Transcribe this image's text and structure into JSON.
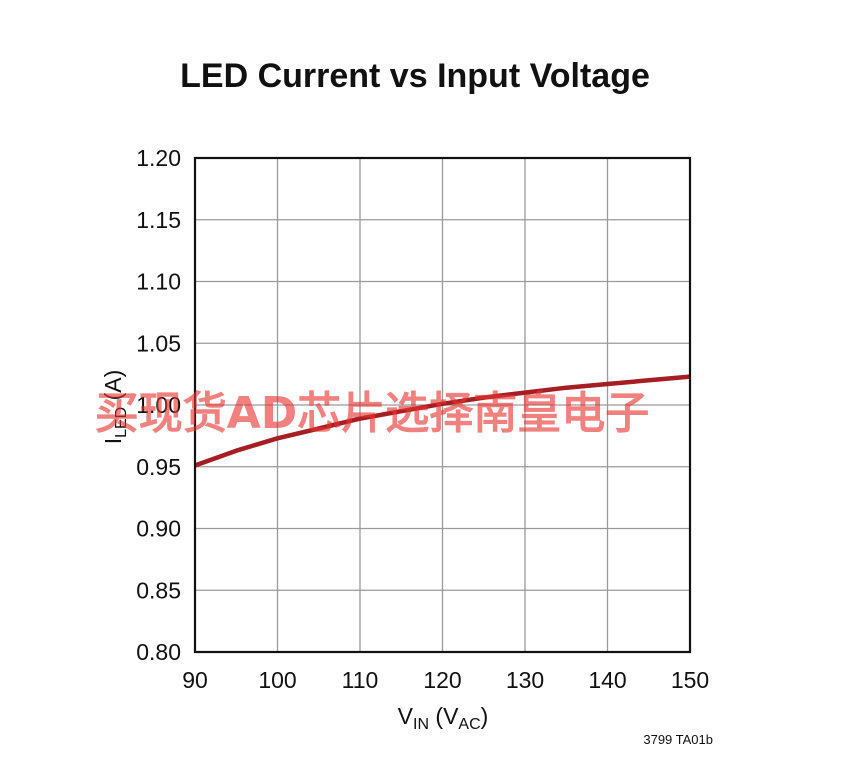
{
  "colors": {
    "line": "#a41e23",
    "grid": "#9a9a9a",
    "frame": "#111111",
    "watermark": "#e8332e"
  },
  "chart_data": {
    "type": "line",
    "title": "LED Current vs Input Voltage",
    "xlabel": {
      "main": "V",
      "sub": "IN",
      "mid": " (V",
      "sub2": "AC",
      "end": ")"
    },
    "ylabel": {
      "main": "I",
      "sub": "LED",
      "end": " (A)"
    },
    "xlim": [
      90,
      150
    ],
    "ylim": [
      0.8,
      1.2
    ],
    "xticks": [
      "90",
      "100",
      "110",
      "120",
      "130",
      "140",
      "150"
    ],
    "yticks": [
      "0.80",
      "0.85",
      "0.90",
      "0.95",
      "1.00",
      "1.05",
      "1.10",
      "1.15",
      "1.20"
    ],
    "grid": true,
    "series": [
      {
        "x": [
          90,
          95,
          100,
          105,
          110,
          115,
          120,
          125,
          130,
          135,
          140,
          145,
          150
        ],
        "y": [
          0.951,
          0.963,
          0.973,
          0.981,
          0.989,
          0.995,
          1.001,
          1.006,
          1.01,
          1.014,
          1.017,
          1.02,
          1.023
        ]
      }
    ],
    "note": "3799 TA01b"
  },
  "watermark": "买现货AD芯片选择南皇电子"
}
